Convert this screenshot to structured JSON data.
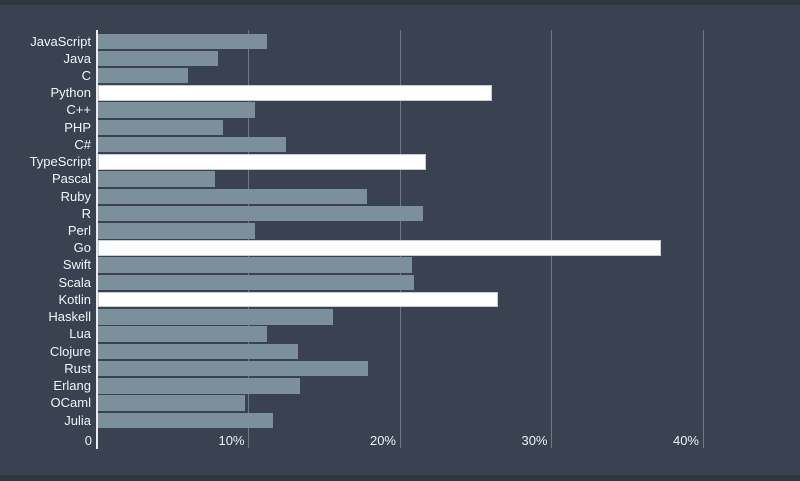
{
  "chart_data": {
    "type": "bar",
    "orientation": "horizontal",
    "title": "",
    "xlabel": "",
    "ylabel": "",
    "grid": true,
    "legend": false,
    "xlim": [
      0,
      46
    ],
    "x_ticks": [
      {
        "value": 0,
        "label": "0"
      },
      {
        "value": 10,
        "label": "10%"
      },
      {
        "value": 20,
        "label": "20%"
      },
      {
        "value": 30,
        "label": "30%"
      },
      {
        "value": 40,
        "label": "40%"
      }
    ],
    "categories": [
      "JavaScript",
      "Java",
      "C",
      "Python",
      "C++",
      "PHP",
      "C#",
      "TypeScript",
      "Pascal",
      "Ruby",
      "R",
      "Perl",
      "Go",
      "Swift",
      "Scala",
      "Kotlin",
      "Haskell",
      "Lua",
      "Clojure",
      "Rust",
      "Erlang",
      "OCaml",
      "Julia"
    ],
    "values": [
      11.2,
      8.0,
      6.0,
      26.1,
      10.4,
      8.3,
      12.5,
      21.7,
      7.8,
      17.8,
      21.5,
      10.4,
      37.2,
      20.8,
      20.9,
      26.5,
      15.6,
      11.2,
      13.3,
      17.9,
      13.4,
      9.8,
      11.6
    ],
    "highlighted_categories": [
      "Python",
      "TypeScript",
      "Go",
      "Kotlin"
    ],
    "colors": {
      "background": "#3a4150",
      "edge_strip": "#30363f",
      "bar": "#7b909a",
      "highlight_bar": "#ffffff",
      "highlight_border": "#c5cbd4",
      "gridline": "#828b99",
      "zero_line": "#e9ecf0",
      "text": "#f3f5f7"
    }
  }
}
